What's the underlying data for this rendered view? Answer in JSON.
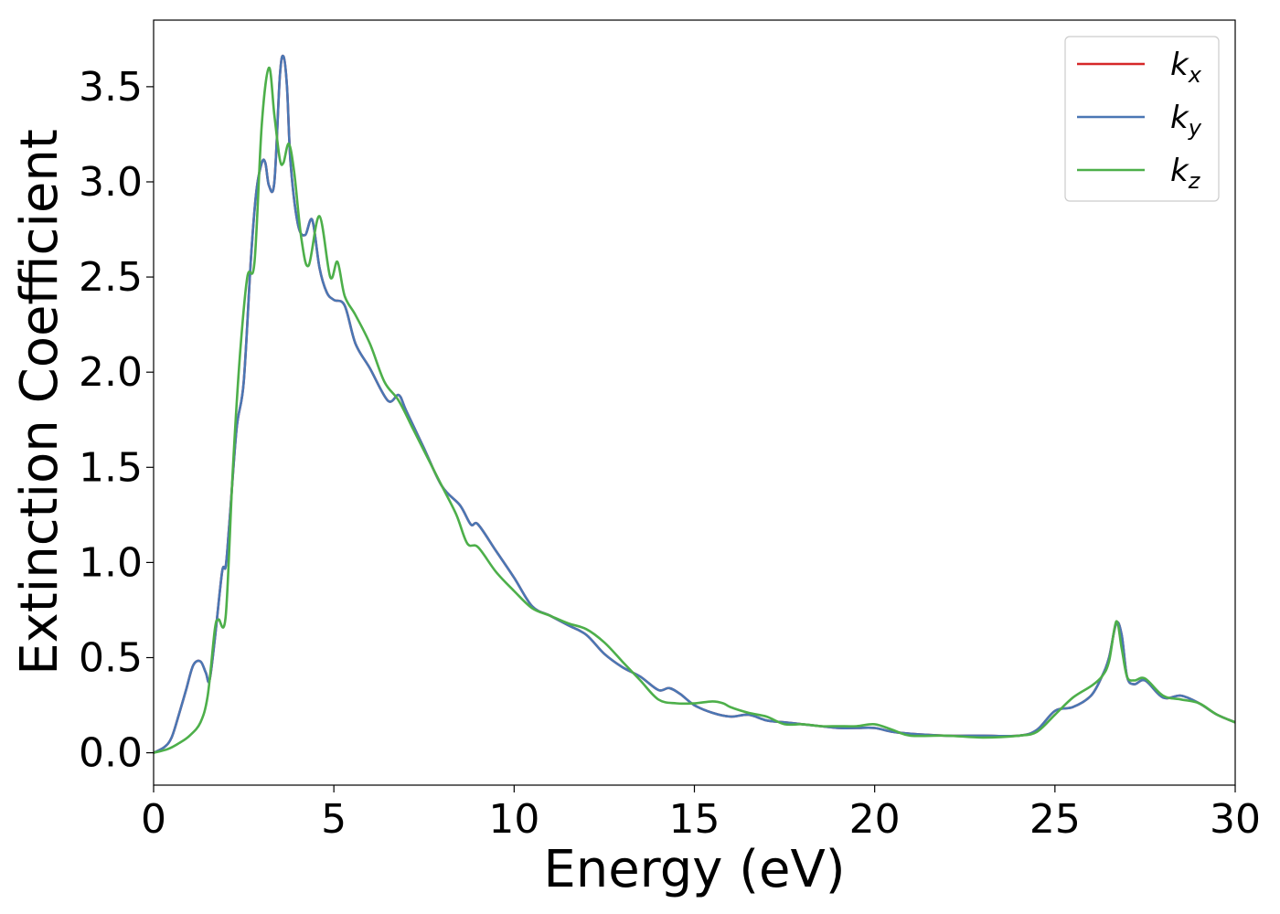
{
  "chart_data": {
    "type": "line",
    "title": "",
    "xlabel": "Energy (eV)",
    "ylabel": "Extinction Coefficient",
    "xlim": [
      0,
      30
    ],
    "ylim": [
      -0.17,
      3.85
    ],
    "xticks": [
      0,
      5,
      10,
      15,
      20,
      25,
      30
    ],
    "xtick_labels": [
      "0",
      "5",
      "10",
      "15",
      "20",
      "25",
      "30"
    ],
    "yticks": [
      0.0,
      0.5,
      1.0,
      1.5,
      2.0,
      2.5,
      3.0,
      3.5
    ],
    "ytick_labels": [
      "0.0",
      "0.5",
      "1.0",
      "1.5",
      "2.0",
      "2.5",
      "3.0",
      "3.5"
    ],
    "grid": false,
    "legend_position": "top-right",
    "series": [
      {
        "name": "k_x",
        "label_main": "k",
        "label_sub": "x",
        "color": "#d62728",
        "x": [
          0,
          0.3,
          0.5,
          0.7,
          0.9,
          1.1,
          1.3,
          1.45,
          1.55,
          1.7,
          1.9,
          2.0,
          2.1,
          2.3,
          2.5,
          2.7,
          2.85,
          3.0,
          3.1,
          3.2,
          3.35,
          3.5,
          3.6,
          3.7,
          3.8,
          4.0,
          4.2,
          4.4,
          4.6,
          4.8,
          5.0,
          5.3,
          5.6,
          6.0,
          6.5,
          6.8,
          7.0,
          7.5,
          8.0,
          8.5,
          8.8,
          9.0,
          9.5,
          10.0,
          10.5,
          11.0,
          11.5,
          12.0,
          12.5,
          13.0,
          13.5,
          14.0,
          14.3,
          14.6,
          15.0,
          15.5,
          16.0,
          16.5,
          17.0,
          17.5,
          18.0,
          18.5,
          19.0,
          19.5,
          20.0,
          20.5,
          21.0,
          22.0,
          23.0,
          24.0,
          24.5,
          25.0,
          25.5,
          26.0,
          26.3,
          26.5,
          26.7,
          26.85,
          27.0,
          27.2,
          27.5,
          28.0,
          28.5,
          29.0,
          29.5,
          30.0
        ],
        "y": [
          0,
          0.03,
          0.08,
          0.2,
          0.33,
          0.46,
          0.48,
          0.42,
          0.38,
          0.6,
          0.95,
          0.98,
          1.2,
          1.7,
          1.95,
          2.6,
          2.95,
          3.1,
          3.1,
          2.98,
          3.0,
          3.55,
          3.66,
          3.5,
          3.1,
          2.78,
          2.72,
          2.8,
          2.55,
          2.42,
          2.38,
          2.35,
          2.15,
          2.02,
          1.85,
          1.88,
          1.8,
          1.6,
          1.4,
          1.3,
          1.2,
          1.2,
          1.06,
          0.92,
          0.77,
          0.72,
          0.67,
          0.62,
          0.52,
          0.45,
          0.4,
          0.33,
          0.34,
          0.31,
          0.25,
          0.21,
          0.19,
          0.2,
          0.17,
          0.16,
          0.15,
          0.14,
          0.13,
          0.13,
          0.13,
          0.11,
          0.1,
          0.09,
          0.09,
          0.09,
          0.12,
          0.22,
          0.24,
          0.3,
          0.4,
          0.5,
          0.68,
          0.62,
          0.4,
          0.36,
          0.38,
          0.29,
          0.3,
          0.26,
          0.2,
          0.16
        ]
      },
      {
        "name": "k_y",
        "label_main": "k",
        "label_sub": "y",
        "color": "#4a77b4",
        "x": [
          0,
          0.3,
          0.5,
          0.7,
          0.9,
          1.1,
          1.3,
          1.45,
          1.55,
          1.7,
          1.9,
          2.0,
          2.1,
          2.3,
          2.5,
          2.7,
          2.85,
          3.0,
          3.1,
          3.2,
          3.35,
          3.5,
          3.6,
          3.7,
          3.8,
          4.0,
          4.2,
          4.4,
          4.6,
          4.8,
          5.0,
          5.3,
          5.6,
          6.0,
          6.5,
          6.8,
          7.0,
          7.5,
          8.0,
          8.5,
          8.8,
          9.0,
          9.5,
          10.0,
          10.5,
          11.0,
          11.5,
          12.0,
          12.5,
          13.0,
          13.5,
          14.0,
          14.3,
          14.6,
          15.0,
          15.5,
          16.0,
          16.5,
          17.0,
          17.5,
          18.0,
          18.5,
          19.0,
          19.5,
          20.0,
          20.5,
          21.0,
          22.0,
          23.0,
          24.0,
          24.5,
          25.0,
          25.5,
          26.0,
          26.3,
          26.5,
          26.7,
          26.85,
          27.0,
          27.2,
          27.5,
          28.0,
          28.5,
          29.0,
          29.5,
          30.0
        ],
        "y": [
          0,
          0.03,
          0.08,
          0.2,
          0.33,
          0.46,
          0.48,
          0.42,
          0.38,
          0.6,
          0.95,
          0.98,
          1.2,
          1.7,
          1.95,
          2.6,
          2.95,
          3.1,
          3.1,
          2.98,
          3.0,
          3.55,
          3.66,
          3.5,
          3.1,
          2.78,
          2.72,
          2.8,
          2.55,
          2.42,
          2.38,
          2.35,
          2.15,
          2.02,
          1.85,
          1.88,
          1.8,
          1.6,
          1.4,
          1.3,
          1.2,
          1.2,
          1.06,
          0.92,
          0.77,
          0.72,
          0.67,
          0.62,
          0.52,
          0.45,
          0.4,
          0.33,
          0.34,
          0.31,
          0.25,
          0.21,
          0.19,
          0.2,
          0.17,
          0.16,
          0.15,
          0.14,
          0.13,
          0.13,
          0.13,
          0.11,
          0.1,
          0.09,
          0.09,
          0.09,
          0.12,
          0.22,
          0.24,
          0.3,
          0.4,
          0.5,
          0.68,
          0.62,
          0.4,
          0.36,
          0.38,
          0.29,
          0.3,
          0.26,
          0.2,
          0.16
        ]
      },
      {
        "name": "k_z",
        "label_main": "k",
        "label_sub": "z",
        "color": "#4daf4a",
        "x": [
          0,
          0.4,
          0.7,
          1.0,
          1.3,
          1.5,
          1.7,
          1.8,
          2.0,
          2.2,
          2.4,
          2.6,
          2.8,
          3.0,
          3.2,
          3.35,
          3.5,
          3.6,
          3.75,
          3.9,
          4.1,
          4.3,
          4.6,
          4.9,
          5.1,
          5.3,
          5.6,
          6.0,
          6.4,
          6.8,
          7.2,
          7.6,
          8.0,
          8.4,
          8.7,
          9.0,
          9.5,
          10.0,
          10.5,
          11.0,
          11.5,
          12.0,
          12.5,
          13.0,
          13.5,
          14.0,
          14.5,
          15.0,
          15.5,
          15.8,
          16.0,
          16.5,
          17.0,
          17.5,
          18.0,
          18.5,
          19.0,
          19.5,
          20.0,
          20.5,
          21.0,
          22.0,
          23.0,
          24.0,
          24.5,
          25.0,
          25.5,
          26.0,
          26.3,
          26.5,
          26.7,
          26.85,
          27.0,
          27.2,
          27.5,
          28.0,
          28.5,
          29.0,
          29.5,
          30.0
        ],
        "y": [
          0,
          0.02,
          0.05,
          0.09,
          0.16,
          0.3,
          0.65,
          0.7,
          0.72,
          1.5,
          2.1,
          2.5,
          2.58,
          3.3,
          3.6,
          3.35,
          3.12,
          3.1,
          3.2,
          3.05,
          2.7,
          2.56,
          2.82,
          2.5,
          2.58,
          2.4,
          2.3,
          2.15,
          1.95,
          1.85,
          1.7,
          1.55,
          1.4,
          1.25,
          1.1,
          1.08,
          0.95,
          0.85,
          0.76,
          0.72,
          0.68,
          0.65,
          0.58,
          0.48,
          0.38,
          0.28,
          0.26,
          0.26,
          0.27,
          0.26,
          0.24,
          0.21,
          0.19,
          0.15,
          0.15,
          0.14,
          0.14,
          0.14,
          0.15,
          0.12,
          0.09,
          0.09,
          0.08,
          0.09,
          0.11,
          0.2,
          0.29,
          0.35,
          0.4,
          0.48,
          0.69,
          0.55,
          0.4,
          0.38,
          0.39,
          0.3,
          0.28,
          0.26,
          0.2,
          0.16
        ]
      }
    ]
  }
}
